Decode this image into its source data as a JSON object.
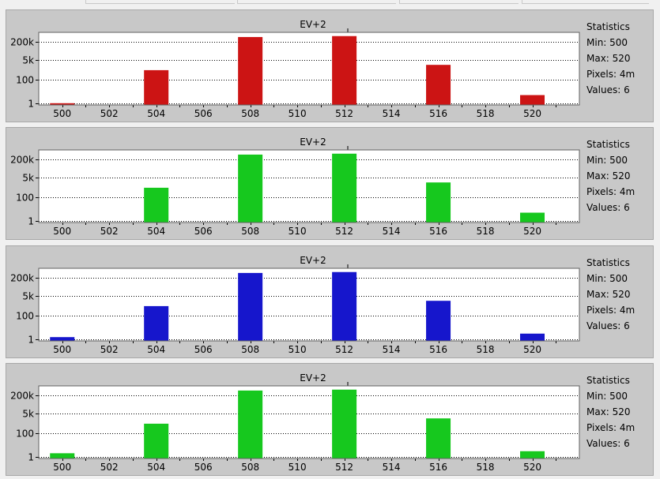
{
  "colors": {
    "red": "#cc1414",
    "green": "#16c81e",
    "blue": "#1616cc",
    "panel_bg": "#c8c8c8",
    "plot_bg": "#ffffff"
  },
  "chart_data": [
    {
      "type": "bar",
      "title": "EV+2",
      "series": [
        {
          "values": [
            1,
            700,
            500000,
            600000,
            2000,
            5
          ]
        }
      ],
      "x": [
        500,
        504,
        508,
        512,
        516,
        520
      ],
      "xticks": [
        "500",
        "502",
        "504",
        "506",
        "508",
        "510",
        "512",
        "514",
        "516",
        "518",
        "520"
      ],
      "yticks": [
        "200k",
        "5k",
        "100",
        "1"
      ],
      "ylog": true,
      "color": "#cc1414",
      "stats": {
        "heading": "Statistics",
        "min": "Min: 500",
        "max": "Max: 520",
        "pixels": "Pixels: 4m",
        "values": "Values: 6"
      }
    },
    {
      "type": "bar",
      "title": "EV+2",
      "series": [
        {
          "values": [
            0.5,
            700,
            500000,
            600000,
            2000,
            5
          ]
        }
      ],
      "x": [
        500,
        504,
        508,
        512,
        516,
        520
      ],
      "xticks": [
        "500",
        "502",
        "504",
        "506",
        "508",
        "510",
        "512",
        "514",
        "516",
        "518",
        "520"
      ],
      "yticks": [
        "200k",
        "5k",
        "100",
        "1"
      ],
      "ylog": true,
      "color": "#16c81e",
      "stats": {
        "heading": "Statistics",
        "min": "Min: 500",
        "max": "Max: 520",
        "pixels": "Pixels: 4m",
        "values": "Values: 6"
      }
    },
    {
      "type": "bar",
      "title": "EV+2",
      "series": [
        {
          "values": [
            1.5,
            700,
            500000,
            600000,
            2000,
            3
          ]
        }
      ],
      "x": [
        500,
        504,
        508,
        512,
        516,
        520
      ],
      "xticks": [
        "500",
        "502",
        "504",
        "506",
        "508",
        "510",
        "512",
        "514",
        "516",
        "518",
        "520"
      ],
      "yticks": [
        "200k",
        "5k",
        "100",
        "1"
      ],
      "ylog": true,
      "color": "#1616cc",
      "stats": {
        "heading": "Statistics",
        "min": "Min: 500",
        "max": "Max: 520",
        "pixels": "Pixels: 4m",
        "values": "Values: 6"
      }
    },
    {
      "type": "bar",
      "title": "EV+2",
      "series": [
        {
          "values": [
            2,
            700,
            500000,
            600000,
            2000,
            3
          ]
        }
      ],
      "x": [
        500,
        504,
        508,
        512,
        516,
        520
      ],
      "xticks": [
        "500",
        "502",
        "504",
        "506",
        "508",
        "510",
        "512",
        "514",
        "516",
        "518",
        "520"
      ],
      "yticks": [
        "200k",
        "5k",
        "100",
        "1"
      ],
      "ylog": true,
      "color": "#16c81e",
      "stats": {
        "heading": "Statistics",
        "min": "Min: 500",
        "max": "Max: 520",
        "pixels": "Pixels: 4m",
        "values": "Values: 6"
      }
    }
  ]
}
